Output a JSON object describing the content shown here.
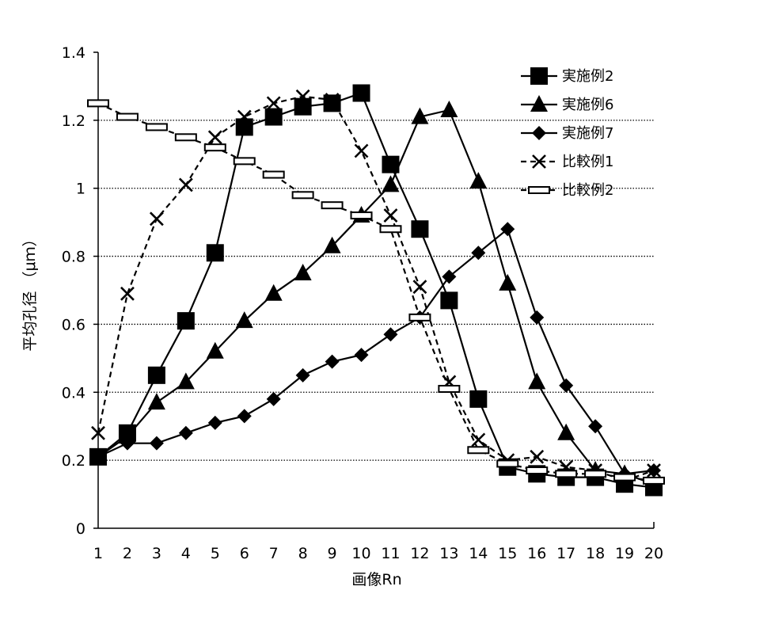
{
  "chart_data": {
    "type": "line",
    "title": "",
    "xlabel": "画像Rn",
    "ylabel": "平均孔径 （μｍ）",
    "x": [
      1,
      2,
      3,
      4,
      5,
      6,
      7,
      8,
      9,
      10,
      11,
      12,
      13,
      14,
      15,
      16,
      17,
      18,
      19,
      20
    ],
    "x_tick_labels": [
      "1",
      "2",
      "3",
      "4",
      "5",
      "6",
      "7",
      "8",
      "9",
      "10",
      "11",
      "12",
      "13",
      "14",
      "15",
      "16",
      "17",
      "18",
      "19",
      "20"
    ],
    "ylim": [
      0,
      1.4
    ],
    "y_ticks": [
      0,
      0.2,
      0.4,
      0.6,
      0.8,
      1,
      1.2,
      1.4
    ],
    "y_tick_labels": [
      "0",
      "0.2",
      "0.4",
      "0.6",
      "0.8",
      "1",
      "1.2",
      "1.4"
    ],
    "grid": "horizontal dotted",
    "legend_position": "top-right",
    "series": [
      {
        "name": "実施例2",
        "marker": "square",
        "line": "solid",
        "values": [
          0.21,
          0.28,
          0.45,
          0.61,
          0.81,
          1.18,
          1.21,
          1.24,
          1.25,
          1.28,
          1.07,
          0.88,
          0.67,
          0.38,
          0.18,
          0.16,
          0.15,
          0.15,
          0.13,
          0.12
        ]
      },
      {
        "name": "実施例6",
        "marker": "triangle",
        "line": "solid",
        "values": [
          0.21,
          0.27,
          0.37,
          0.43,
          0.52,
          0.61,
          0.69,
          0.75,
          0.83,
          0.92,
          1.01,
          1.21,
          1.23,
          1.02,
          0.72,
          0.43,
          0.28,
          0.17,
          0.16,
          0.13
        ]
      },
      {
        "name": "実施例7",
        "marker": "diamond",
        "line": "solid",
        "values": [
          0.21,
          0.25,
          0.25,
          0.28,
          0.31,
          0.33,
          0.38,
          0.45,
          0.49,
          0.51,
          0.57,
          0.62,
          0.74,
          0.81,
          0.88,
          0.62,
          0.42,
          0.3,
          0.16,
          0.17
        ]
      },
      {
        "name": "比較例1",
        "marker": "x",
        "line": "dashed",
        "values": [
          0.28,
          0.69,
          0.91,
          1.01,
          1.15,
          1.21,
          1.25,
          1.27,
          1.26,
          1.11,
          0.92,
          0.71,
          0.43,
          0.26,
          0.2,
          0.21,
          0.18,
          0.17,
          0.14,
          0.17
        ]
      },
      {
        "name": "比較例2",
        "marker": "dash",
        "line": "dashed",
        "values": [
          1.25,
          1.21,
          1.18,
          1.15,
          1.12,
          1.08,
          1.04,
          0.98,
          0.95,
          0.92,
          0.88,
          0.62,
          0.41,
          0.23,
          0.19,
          0.17,
          0.16,
          0.16,
          0.15,
          0.14
        ]
      }
    ]
  }
}
